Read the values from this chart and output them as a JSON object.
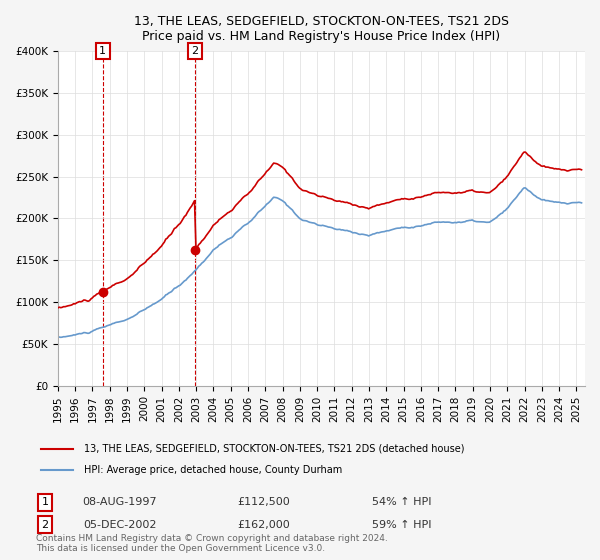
{
  "title": "13, THE LEAS, SEDGEFIELD, STOCKTON-ON-TEES, TS21 2DS",
  "subtitle": "Price paid vs. HM Land Registry's House Price Index (HPI)",
  "legend_line1": "13, THE LEAS, SEDGEFIELD, STOCKTON-ON-TEES, TS21 2DS (detached house)",
  "legend_line2": "HPI: Average price, detached house, County Durham",
  "annotation1_date": "08-AUG-1997",
  "annotation1_price": "£112,500",
  "annotation1_hpi": "54% ↑ HPI",
  "annotation2_date": "05-DEC-2002",
  "annotation2_price": "£162,000",
  "annotation2_hpi": "59% ↑ HPI",
  "footer": "Contains HM Land Registry data © Crown copyright and database right 2024.\nThis data is licensed under the Open Government Licence v3.0.",
  "sale_color": "#cc0000",
  "hpi_color": "#6699cc",
  "vline_color": "#cc0000",
  "sale1_x": 1997.6,
  "sale1_y": 112500,
  "sale2_x": 2002.92,
  "sale2_y": 162000,
  "ylim": [
    0,
    400000
  ],
  "xlim": [
    1995.0,
    2025.5
  ],
  "yticks": [
    0,
    50000,
    100000,
    150000,
    200000,
    250000,
    300000,
    350000,
    400000
  ],
  "ytick_labels": [
    "£0",
    "£50K",
    "£100K",
    "£150K",
    "£200K",
    "£250K",
    "£300K",
    "£350K",
    "£400K"
  ],
  "background_color": "#f5f5f5",
  "plot_bg_color": "#ffffff",
  "grid_color": "#dddddd",
  "hpi_keypoints_x": [
    1995.0,
    1996,
    1997,
    1998,
    1999,
    2000,
    2001,
    2002,
    2003,
    2004,
    2005,
    2006,
    2007,
    2007.5,
    2008,
    2009,
    2010,
    2011,
    2012,
    2013,
    2014,
    2015,
    2016,
    2017,
    2018,
    2019,
    2020,
    2021,
    2022,
    2023,
    2024,
    2025.3
  ],
  "hpi_keypoints_y": [
    57000,
    60000,
    64000,
    70000,
    77000,
    87000,
    100000,
    115000,
    135000,
    160000,
    175000,
    190000,
    210000,
    220000,
    215000,
    195000,
    188000,
    182000,
    178000,
    175000,
    180000,
    185000,
    188000,
    192000,
    192000,
    193000,
    190000,
    205000,
    230000,
    215000,
    210000,
    210000
  ]
}
